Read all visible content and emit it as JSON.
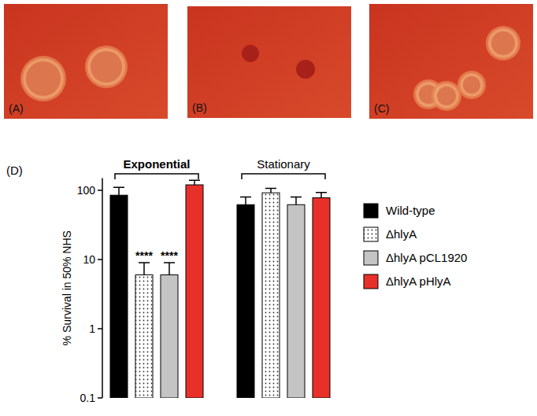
{
  "figure": {
    "photos": [
      {
        "label": "(A)"
      },
      {
        "label": "(B)"
      },
      {
        "label": "(C)"
      }
    ],
    "chart_label": "(D)"
  },
  "chart_data": {
    "type": "bar",
    "y_label": "% Survival in 50% NHS",
    "categories": [
      "Exponential",
      "Stationary"
    ],
    "series": [
      {
        "name": "Wild-type",
        "color": "#000000",
        "values": [
          85,
          62
        ],
        "errors": [
          25,
          18
        ]
      },
      {
        "name": "ΔhlyA",
        "color": "#ffffff",
        "values": [
          6,
          92
        ],
        "errors": [
          3,
          15
        ]
      },
      {
        "name": "ΔhlyA pCL1920",
        "color": "#c4c4c4",
        "values": [
          6,
          62
        ],
        "errors": [
          3,
          18
        ]
      },
      {
        "name": "ΔhlyA pHlyA",
        "color": "#e8302a",
        "values": [
          120,
          78
        ],
        "errors": [
          20,
          15
        ]
      }
    ],
    "annotations": [
      {
        "text": "****",
        "series": 1,
        "category": 0
      },
      {
        "text": "****",
        "series": 2,
        "category": 0
      }
    ],
    "log": "y",
    "ylim": [
      0.1,
      150
    ],
    "yticks": [
      0.1,
      1,
      10,
      100
    ],
    "legend": "right",
    "grid": false
  }
}
